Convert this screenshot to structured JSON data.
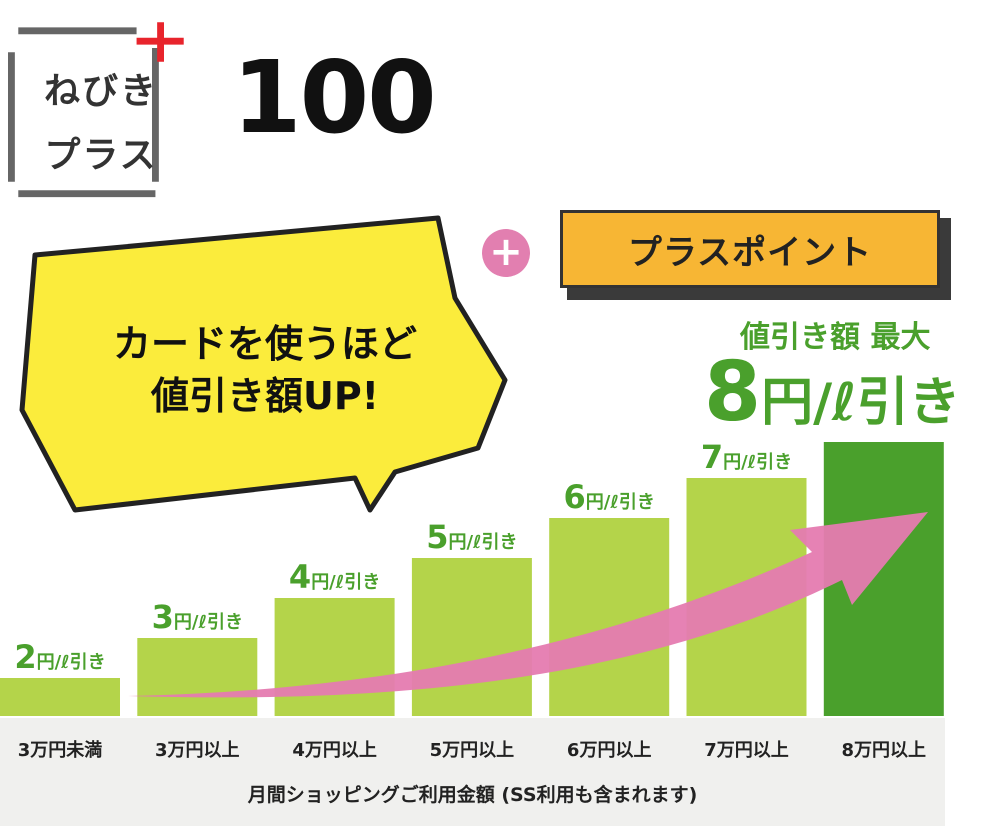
{
  "logo": {
    "line1": "ねびき",
    "line2": "プラス",
    "number": "100",
    "colors": {
      "frame": "#666666",
      "plus": "#e8242c"
    }
  },
  "plus_point": {
    "plus_symbol": "+",
    "label": "プラスポイント",
    "colors": {
      "box": "#f7b634",
      "circle": "#e27fb0"
    }
  },
  "bubble": {
    "line1": "カードを使うほど",
    "line2": "値引き額UP!",
    "color": "#fbec3c"
  },
  "max": {
    "label": "値引き額 最大",
    "value": "8",
    "unit": "円/ℓ引き",
    "color": "#4aa02c"
  },
  "chart_data": {
    "type": "bar",
    "xlabel": "月間ショッピングご利用金額 (SS利用も含まれます)",
    "categories": [
      "3万円未満",
      "3万円以上",
      "4万円以上",
      "5万円以上",
      "6万円以上",
      "7万円以上",
      "8万円以上"
    ],
    "values": [
      2,
      3,
      4,
      5,
      6,
      7,
      8
    ],
    "value_suffix": "円/ℓ引き",
    "colors": {
      "bar": "#b4d44a",
      "bar_max": "#4aa02c",
      "label": "#4aa02c",
      "arrow": "#e57bb0"
    },
    "ylim": [
      0,
      8
    ]
  }
}
